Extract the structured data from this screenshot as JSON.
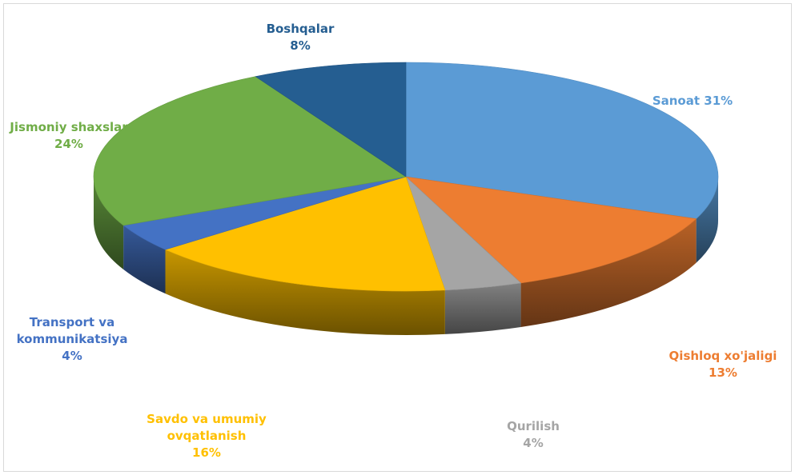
{
  "chart_data": {
    "type": "pie",
    "title": "",
    "slices": [
      {
        "name": "Sanoat",
        "value": 31,
        "label_lines": [
          "Sanoat 31%"
        ],
        "color": "#5b9bd5"
      },
      {
        "name": "Qishloq xo'jaligi",
        "value": 13,
        "label_lines": [
          "Qishloq xo'jaligi",
          "13%"
        ],
        "color": "#ed7d31"
      },
      {
        "name": "Qurilish",
        "value": 4,
        "label_lines": [
          "Qurilish",
          "4%"
        ],
        "color": "#a5a5a5"
      },
      {
        "name": "Savdo va umumiy ovqatlanish",
        "value": 16,
        "label_lines": [
          "Savdo va umumiy",
          "ovqatlanish",
          "16%"
        ],
        "color": "#ffc000"
      },
      {
        "name": "Transport va kommunikatsiya",
        "value": 4,
        "label_lines": [
          "Transport va",
          "kommunikatsiya",
          "4%"
        ],
        "color": "#4472c4"
      },
      {
        "name": "Jismoniy shaxslar",
        "value": 24,
        "label_lines": [
          "Jismoniy shaxslar",
          "24%"
        ],
        "color": "#70ad47"
      },
      {
        "name": "Boshqalar",
        "value": 8,
        "label_lines": [
          "Boshqalar",
          "8%"
        ],
        "color": "#255e91"
      }
    ]
  }
}
